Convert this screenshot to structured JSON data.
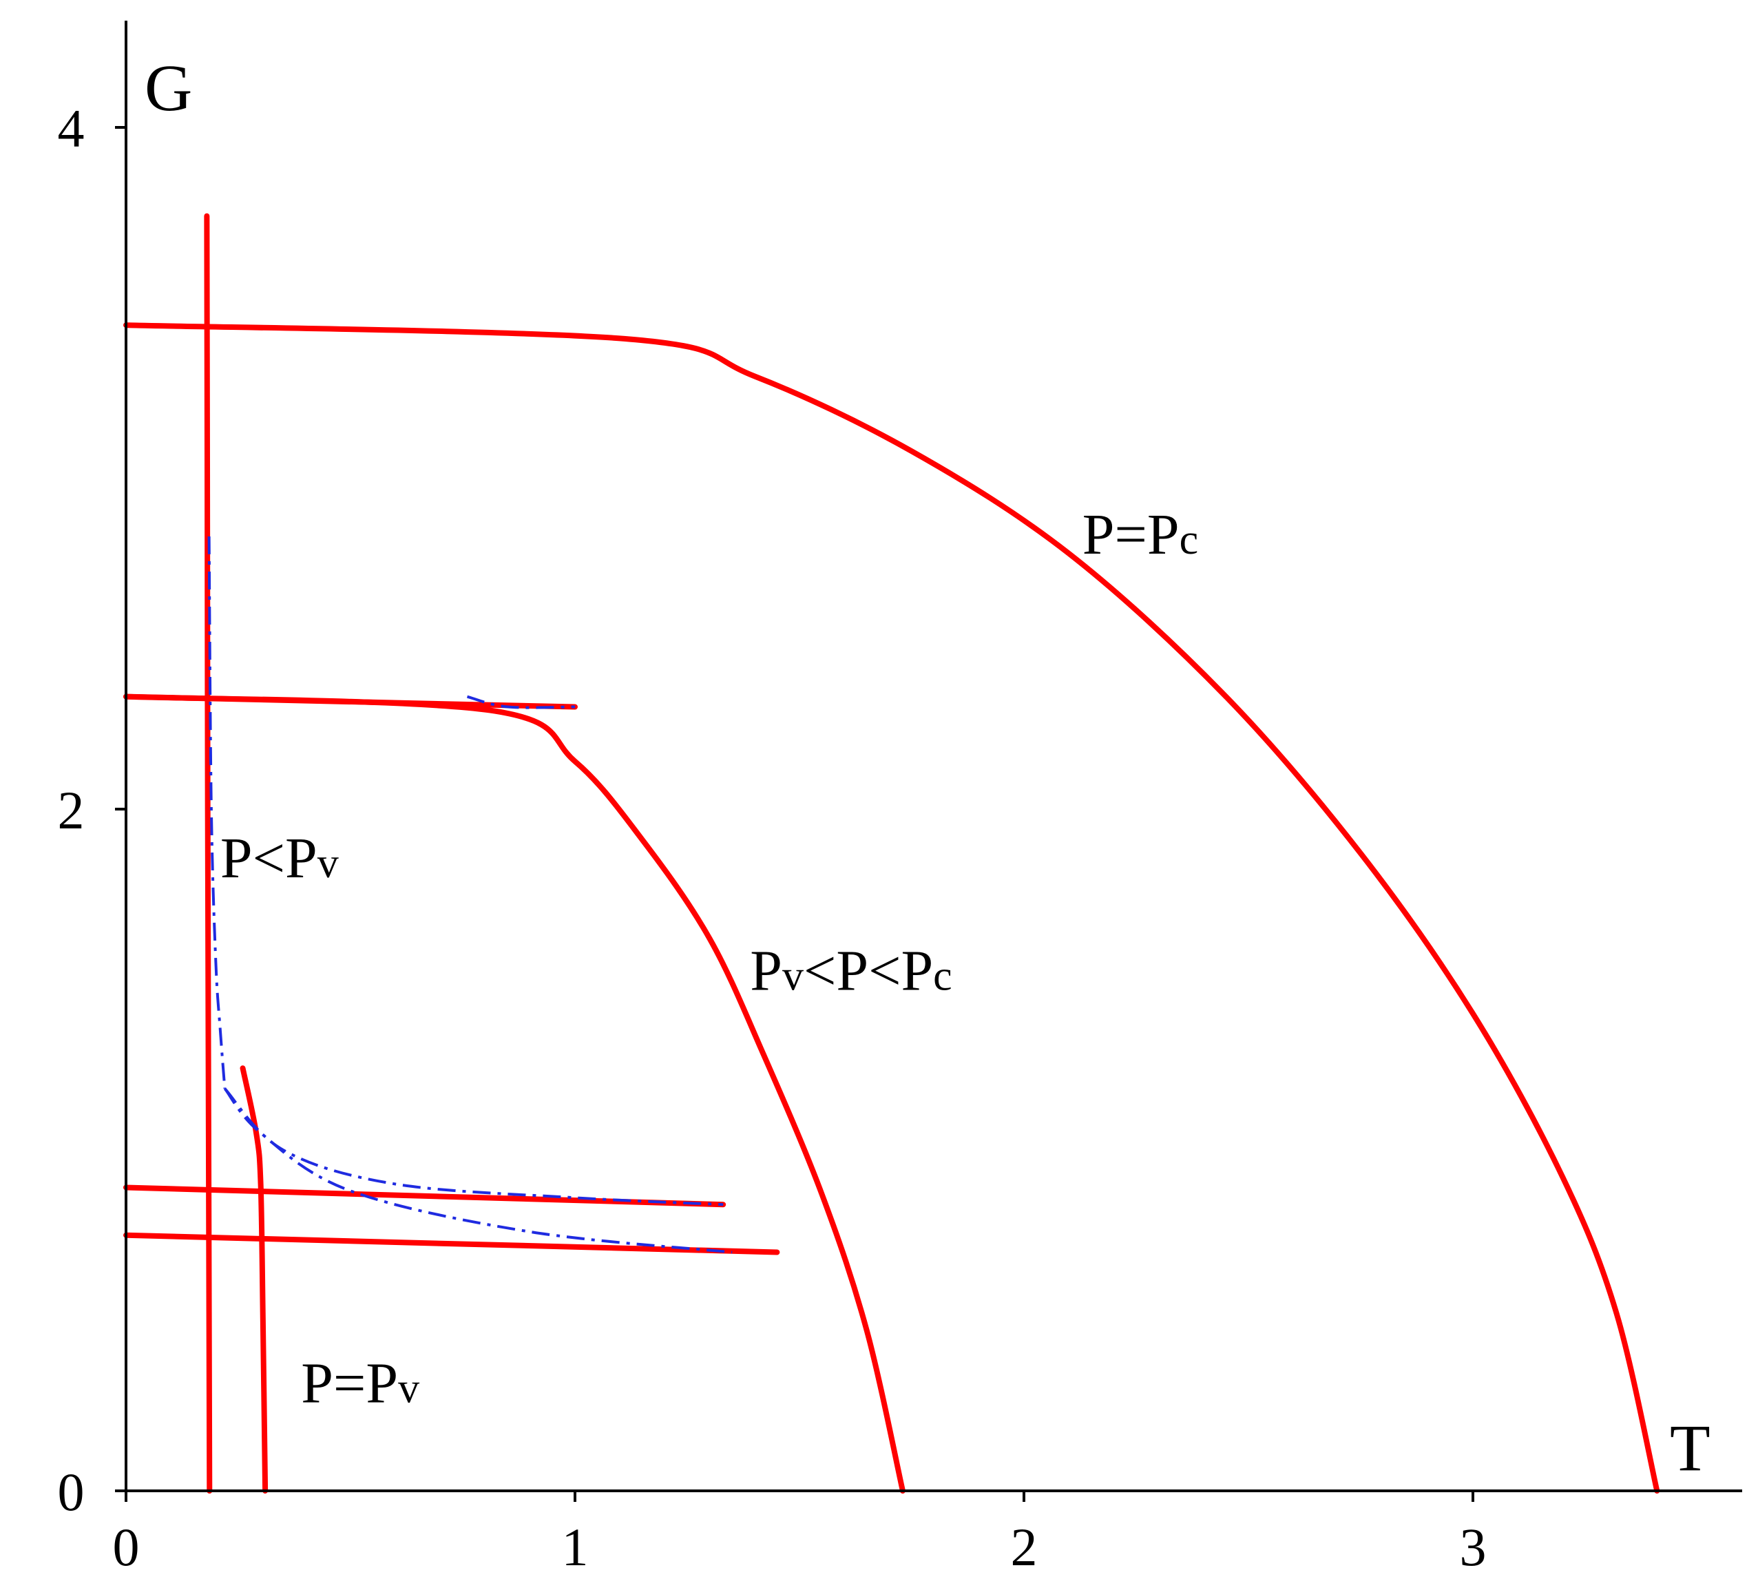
{
  "chart_data": {
    "type": "line",
    "xlabel": "T",
    "ylabel": "G",
    "xlim": [
      0,
      3.6
    ],
    "ylim": [
      0,
      4.3
    ],
    "xticks": [
      0,
      1,
      2,
      3
    ],
    "yticks": [
      0,
      2,
      4
    ],
    "colors": {
      "solid": "#ff0000",
      "dashdot": "#1f2be0"
    },
    "annotations": [
      {
        "id": "pc",
        "parts": [
          "P=P",
          "c"
        ],
        "x": 2.13,
        "y": 2.75
      },
      {
        "id": "between",
        "parts": [
          "P",
          "v",
          "<P<P",
          "c"
        ],
        "x": 1.39,
        "y": 1.47
      },
      {
        "id": "below",
        "parts": [
          "P<P",
          "v"
        ],
        "x": 0.21,
        "y": 1.8
      },
      {
        "id": "pv",
        "parts": [
          "P=P",
          "v"
        ],
        "x": 0.39,
        "y": 0.26
      }
    ],
    "series": [
      {
        "style": "solid",
        "points": [
          [
            0,
            3.42
          ],
          [
            1.11,
            3.38
          ],
          [
            1.4,
            3.27
          ],
          [
            1.75,
            3.05
          ],
          [
            2.1,
            2.75
          ],
          [
            2.45,
            2.33
          ],
          [
            2.75,
            1.87
          ],
          [
            3.0,
            1.4
          ],
          [
            3.2,
            0.92
          ],
          [
            3.32,
            0.52
          ],
          [
            3.41,
            0.0
          ]
        ]
      },
      {
        "style": "solid",
        "points": [
          [
            0,
            2.33
          ],
          [
            0.81,
            2.29
          ],
          [
            1.0,
            2.14
          ],
          [
            1.15,
            1.91
          ],
          [
            1.3,
            1.62
          ],
          [
            1.42,
            1.28
          ],
          [
            1.55,
            0.87
          ],
          [
            1.65,
            0.47
          ],
          [
            1.73,
            0.0
          ]
        ]
      },
      {
        "style": "solid",
        "points": [
          [
            0,
            2.33
          ],
          [
            1.0,
            2.3
          ]
        ]
      },
      {
        "style": "solid",
        "points": [
          [
            0.18,
            3.74
          ],
          [
            0.181,
            3.0
          ],
          [
            0.182,
            2.0
          ],
          [
            0.184,
            1.0
          ],
          [
            0.186,
            0.0
          ]
        ]
      },
      {
        "style": "solid",
        "points": [
          [
            0.26,
            1.24
          ],
          [
            0.29,
            1.05
          ],
          [
            0.3,
            0.9
          ],
          [
            0.305,
            0.5
          ],
          [
            0.31,
            0.0
          ]
        ]
      },
      {
        "style": "solid",
        "points": [
          [
            0,
            0.89
          ],
          [
            1.33,
            0.84
          ]
        ]
      },
      {
        "style": "solid",
        "points": [
          [
            0,
            0.75
          ],
          [
            1.45,
            0.7
          ]
        ]
      },
      {
        "style": "dashdot",
        "points": [
          [
            0.185,
            2.8
          ],
          [
            0.19,
            2.0
          ],
          [
            0.2,
            1.55
          ],
          [
            0.21,
            1.35
          ],
          [
            0.22,
            1.18
          ]
        ]
      },
      {
        "style": "dashdot",
        "points": [
          [
            0.22,
            1.18
          ],
          [
            0.35,
            1.0
          ],
          [
            0.6,
            0.9
          ],
          [
            1.0,
            0.86
          ],
          [
            1.33,
            0.84
          ]
        ]
      },
      {
        "style": "dashdot",
        "points": [
          [
            0.22,
            1.18
          ],
          [
            0.3,
            1.05
          ],
          [
            0.5,
            0.88
          ],
          [
            0.9,
            0.76
          ],
          [
            1.35,
            0.7
          ]
        ]
      },
      {
        "style": "dashdot",
        "points": [
          [
            0.76,
            2.33
          ],
          [
            0.85,
            2.3
          ],
          [
            1.0,
            2.3
          ]
        ]
      }
    ]
  }
}
